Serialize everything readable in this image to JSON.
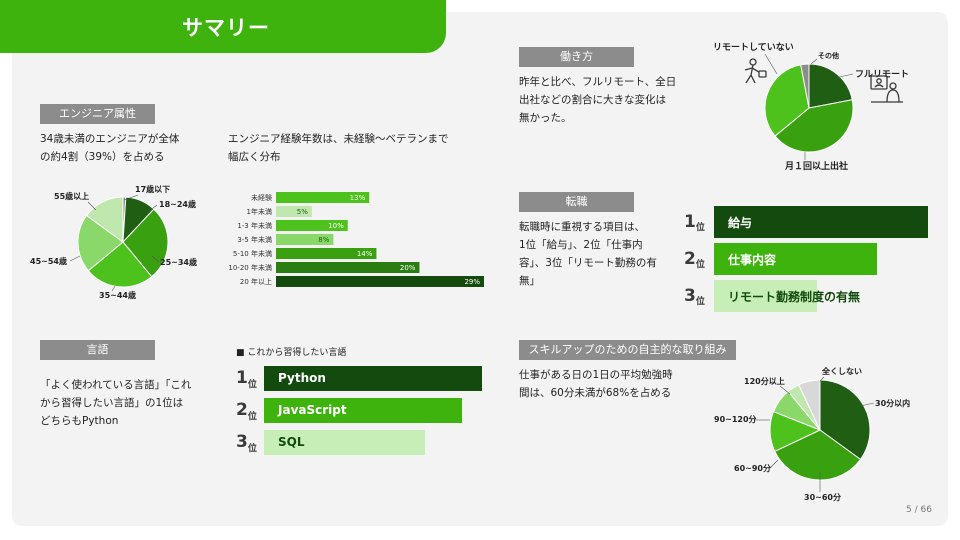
{
  "title": "サマリー",
  "page": "5 / 66",
  "engineer": {
    "label": "エンジニア属性",
    "text1": "34歳未満のエンジニアが全体",
    "text2": "の約4割（39%）を占める",
    "pie_labels": [
      "17歳以下",
      "18~24歳",
      "25~34歳",
      "35~44歳",
      "45~54歳",
      "55歳以上"
    ],
    "bar_text1": "エンジニア経験年数は、未経験〜ベテランまで",
    "bar_text2": "幅広く分布"
  },
  "work_style": {
    "label": "働き方",
    "text1": "昨年と比べ、フルリモート、全日",
    "text2": "出社などの割合に大きな変化は",
    "text3": "無かった。",
    "pie_labels": [
      "リモートしていない",
      "その他",
      "フルリモート",
      "月１回以上出社"
    ]
  },
  "job_change": {
    "label": "転職",
    "text1": "転職時に重視する項目は、",
    "text2": "1位「給与」、2位「仕事内",
    "text3": "容」、3位「リモート勤務の有",
    "text4": "無」",
    "rank_suffix": "位",
    "ranks": [
      {
        "num": "1",
        "label": "給与",
        "bar": "#134a0e",
        "fg": "#ffffff",
        "frac": 1.0
      },
      {
        "num": "2",
        "label": "仕事内容",
        "bar": "#3eb30e",
        "fg": "#ffffff",
        "frac": 0.76
      },
      {
        "num": "3",
        "label": "リモート勤務制度の有無",
        "bar": "#c8eeb8",
        "fg": "#134a0e",
        "frac": 0.48
      }
    ]
  },
  "language": {
    "label": "言語",
    "text1": "「よく使われている言語」「これ",
    "text2": "から習得したい言語」の1位は",
    "text3": "どちらもPython",
    "chart_title": "■ これから習得したい言語",
    "rank_suffix": "位",
    "ranks": [
      {
        "num": "1",
        "label": "Python",
        "bar": "#134a0e",
        "fg": "#ffffff",
        "frac": 1.0
      },
      {
        "num": "2",
        "label": "JavaScript",
        "bar": "#3eb30e",
        "fg": "#ffffff",
        "frac": 0.91
      },
      {
        "num": "3",
        "label": "SQL",
        "bar": "#c8eeb8",
        "fg": "#134a0e",
        "frac": 0.74
      }
    ]
  },
  "skillup": {
    "label": "スキルアップのための自主的な取り組み",
    "text1": "仕事がある日の1日の平均勉強時",
    "text2": "間は、60分未満が68%を占める",
    "pie_labels": [
      "全くしない",
      "30分以内",
      "30~60分",
      "60~90分",
      "90~120分",
      "120分以上"
    ]
  },
  "chart_data": [
    {
      "type": "pie",
      "title": "エンジニア属性",
      "categories": [
        "17歳以下",
        "18~24歳",
        "25~34歳",
        "35~44歳",
        "45~54歳",
        "55歳以上"
      ],
      "values": [
        1,
        11,
        27,
        25,
        21,
        15
      ],
      "colors": [
        "#8c8c8c",
        "#1f5e13",
        "#39a010",
        "#4dc11c",
        "#8ad86a",
        "#c0e8ae"
      ]
    },
    {
      "type": "bar",
      "categories": [
        "未経験",
        "1年未満",
        "1-3 年未満",
        "3-5 年未満",
        "5-10 年未満",
        "10-20 年未満",
        "20 年以上"
      ],
      "values": [
        13,
        5,
        10,
        8,
        14,
        20,
        29
      ],
      "value_labels": [
        "13%",
        "5%",
        "10%",
        "8%",
        "14%",
        "20%",
        "29%"
      ],
      "colors": [
        "#4dc11c",
        "#c0e8ae",
        "#4dc11c",
        "#8ad86a",
        "#39a010",
        "#2a7d13",
        "#154a0f"
      ]
    },
    {
      "type": "pie",
      "title": "働き方",
      "categories": [
        "フルリモート",
        "月１回以上出社",
        "リモートしていない",
        "その他"
      ],
      "values": [
        22,
        42,
        33,
        3
      ],
      "colors": [
        "#1f5e13",
        "#39a010",
        "#4dc11c",
        "#8c8c8c"
      ]
    },
    {
      "type": "pie",
      "title": "スキルアップのための自主的な取り組み",
      "categories": [
        "30分以内",
        "30~60分",
        "60~90分",
        "90~120分",
        "120分以上",
        "全くしない"
      ],
      "values": [
        35,
        33,
        13,
        8,
        4,
        7
      ],
      "colors": [
        "#1f5e13",
        "#39a010",
        "#4dc11c",
        "#8ad86a",
        "#c0e8ae",
        "#d8d8d8"
      ]
    }
  ]
}
